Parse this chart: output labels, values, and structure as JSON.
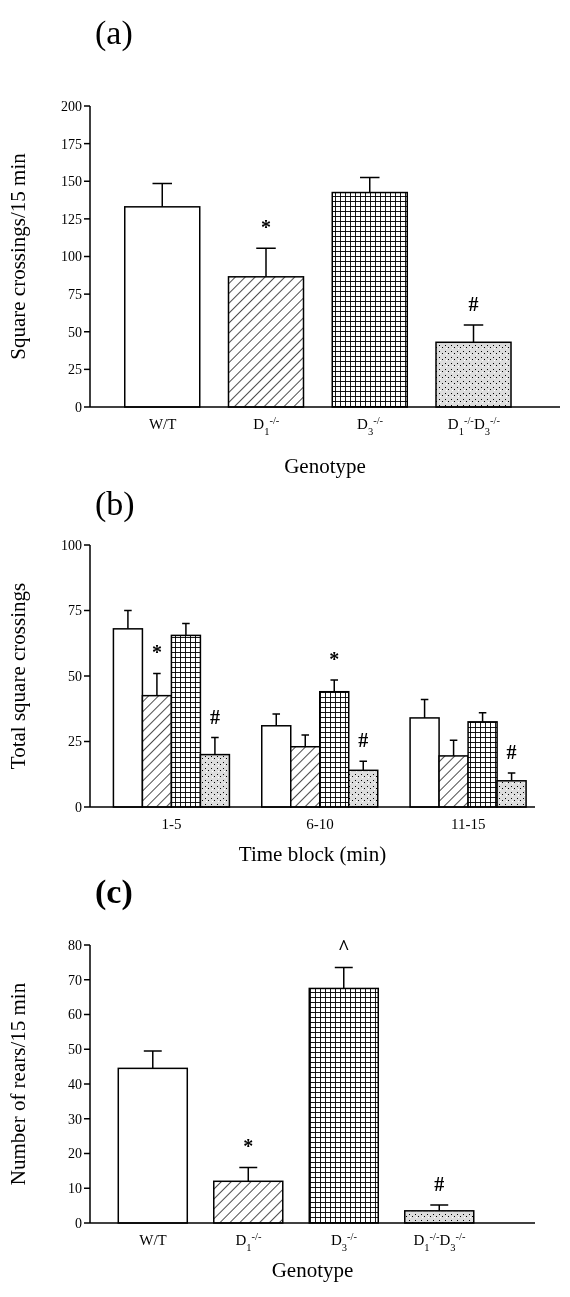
{
  "chart_data": [
    {
      "type": "bar",
      "title": "(a)",
      "xlabel": "Genotype",
      "ylabel": "Square crossings/15 min",
      "categories": [
        "W/T",
        "D$_{1}$$^{-/-}$",
        "D$_{3}$$^{-/-}$",
        "D$_{1}$$^{-/-}$D$_{3}$$^{-/-}$"
      ],
      "values": [
        133,
        86.5,
        142.5,
        43
      ],
      "errors": [
        [
          133,
          148.5
        ],
        [
          86.5,
          105.5
        ],
        [
          142.5,
          152.5
        ],
        [
          43,
          54.5
        ]
      ],
      "value_labels": [
        null,
        "*",
        null,
        "#"
      ],
      "colors": [
        "#ffffff",
        "#000000",
        "#000000",
        "#000000"
      ],
      "ylim": [
        0,
        200
      ],
      "yticks": [
        0,
        25,
        50,
        75,
        100,
        125,
        150,
        175,
        200
      ]
    },
    {
      "type": "bar",
      "title": "(b)",
      "xlabel": "Time block (min)",
      "ylabel": "Total square crossings",
      "categories": [
        "1-5",
        "6-10",
        "11-15"
      ],
      "series": [
        {
          "color": "#ffffff",
          "values": [
            68,
            31,
            34
          ],
          "errors": [
            [
              68,
              75
            ],
            [
              31,
              35.5
            ],
            [
              34,
              41
            ]
          ]
        },
        {
          "color": "#000000",
          "values": [
            42.5,
            23,
            19.5
          ],
          "errors": [
            [
              42.5,
              51
            ],
            [
              23,
              27.5
            ],
            [
              19.5,
              25.5
            ]
          ],
          "value_labels": [
            "*",
            null,
            null
          ]
        },
        {
          "color": "#000000",
          "values": [
            65.5,
            44,
            32.5
          ],
          "errors": [
            [
              65.5,
              70
            ],
            [
              44,
              48.5
            ],
            [
              32.5,
              36
            ]
          ],
          "value_labels": [
            null,
            "*",
            null
          ]
        },
        {
          "color": "#000000",
          "values": [
            20,
            14,
            10
          ],
          "errors": [
            [
              20,
              26.5
            ],
            [
              14,
              17.5
            ],
            [
              10,
              13
            ]
          ],
          "value_labels": [
            "#",
            "#",
            "#"
          ]
        }
      ],
      "ylim": [
        0,
        100
      ],
      "yticks": [
        0,
        25,
        50,
        75,
        100
      ]
    },
    {
      "type": "bar",
      "title": "(c)",
      "xlabel": "Genotype",
      "ylabel": "Number of rears/15 min",
      "categories": [
        "W/T",
        "D$_{1}$$^{-/-}$",
        "D$_{3}$$^{-/-}$",
        "D$_{1}$$^{-/-}$D$_{3}$$^{-/-}$"
      ],
      "values": [
        44.5,
        12,
        67.5,
        3.5
      ],
      "errors": [
        [
          44.5,
          49.5
        ],
        [
          12,
          16
        ],
        [
          67.5,
          73.5
        ],
        [
          3.5,
          5.2
        ]
      ],
      "value_labels": [
        null,
        "*",
        "^",
        "#"
      ],
      "colors": [
        "#ffffff",
        "#000000",
        "#000000",
        "#000000"
      ],
      "ylim": [
        0,
        80
      ],
      "yticks": [
        0,
        10,
        20,
        30,
        40,
        50,
        60,
        70,
        80
      ]
    }
  ]
}
